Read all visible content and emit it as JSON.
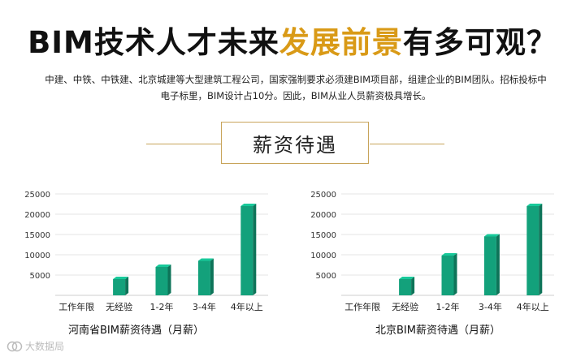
{
  "headline": {
    "part1": "BIM技术人才未来",
    "part2": "发展前景",
    "part3": "有多可观？",
    "accent_color": "#d99a17"
  },
  "description": {
    "line1": "中建、中铁、中铁建、北京城建等大型建筑工程公司，国家强制要求必须建BIM项目部，组建企业的BIM团队。招标投标中",
    "line2": "电子标里，BIM设计占10分。因此，BIM从业人员薪资极具增长。"
  },
  "section_title": "薪资待遇",
  "watermark": "大数据局",
  "bar_color": "#13a17b",
  "chart_data": [
    {
      "type": "bar",
      "title": "河南省BIM薪资待遇（月薪）",
      "categories": [
        "工作年限",
        "无经验",
        "1-2年",
        "3-4年",
        "4年以上"
      ],
      "values": [
        null,
        4000,
        7000,
        8500,
        22000
      ],
      "yticks": [
        5000,
        10000,
        15000,
        20000,
        25000
      ],
      "ylim": [
        0,
        25000
      ]
    },
    {
      "type": "bar",
      "title": "北京BIM薪资待遇（月薪）",
      "categories": [
        "工作年限",
        "无经验",
        "1-2年",
        "3-4年",
        "4年以上"
      ],
      "values": [
        null,
        4000,
        9800,
        14500,
        22000
      ],
      "yticks": [
        5000,
        10000,
        15000,
        20000,
        25000
      ],
      "ylim": [
        0,
        25000
      ]
    }
  ]
}
